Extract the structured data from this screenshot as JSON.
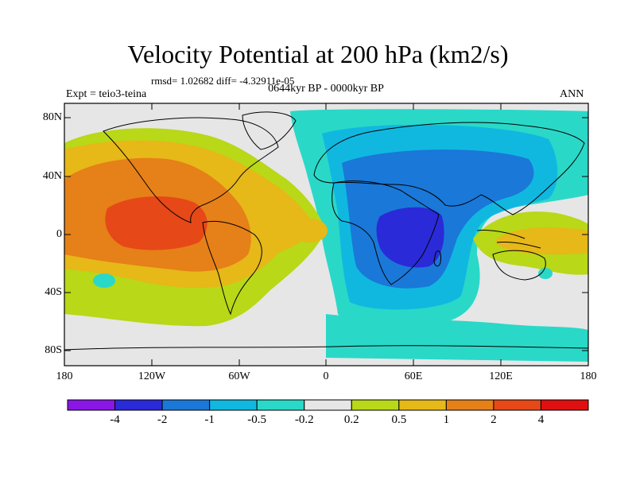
{
  "title": "Velocity Potential at 200 hPa (km2/s)",
  "stats": "rmsd= 1.02682 diff= -4.32911e-05",
  "experiment": "Expt = teio3-teina",
  "period": "0644kyr BP - 0000kyr BP",
  "season": "ANN",
  "chart_data": {
    "type": "contour-map",
    "projection": "cylindrical equidistant",
    "lon_range": [
      -180,
      180
    ],
    "lat_range": [
      -90,
      90
    ],
    "lon_ticks": [
      "180",
      "120W",
      "60W",
      "0",
      "60E",
      "120E",
      "180"
    ],
    "lat_ticks": [
      "80N",
      "40N",
      "0",
      "40S",
      "80S"
    ],
    "colorbar": {
      "labels": [
        "-4",
        "-2",
        "-1",
        "-0.5",
        "-0.2",
        "0.2",
        "0.5",
        "1",
        "2",
        "4"
      ],
      "colors": [
        "#8a16e6",
        "#2a2ad8",
        "#1a78d8",
        "#10b8e0",
        "#2ad8c8",
        "#e6e6e6",
        "#b8d818",
        "#e6b818",
        "#e68018",
        "#e64818",
        "#e01010"
      ]
    },
    "features": [
      {
        "region": "eastern tropical Pacific near 20N-20S, 150W-90W",
        "level": "2 to 4 (max, red)"
      },
      {
        "region": "central-east Pacific and South America",
        "level": "1 to 2"
      },
      {
        "region": "equatorial Africa and western Indian Ocean",
        "level": "-2 to -4 (min, dark blue)"
      },
      {
        "region": "Eurasia and Indian Ocean",
        "level": "-0.5 to -1"
      },
      {
        "region": "Southern Ocean band",
        "level": "-0.2 to -0.5"
      },
      {
        "region": "western tropical Pacific / Maritime Continent",
        "level": "0.5 to 1"
      }
    ]
  }
}
